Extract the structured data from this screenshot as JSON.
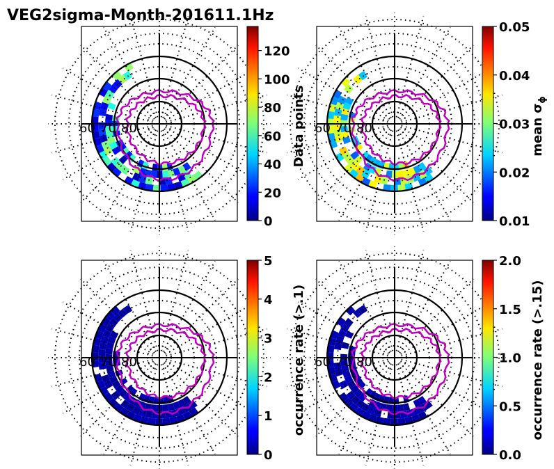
{
  "chart_data": {
    "type": "heatmap",
    "title": "VEG2sigma-Month-201611.1Hz",
    "projection": "polar",
    "lat_circle_labels": [
      "60",
      "70",
      "80"
    ],
    "panels": [
      {
        "id": "data-points",
        "colorbar": {
          "label": "Data points",
          "vmin": 0,
          "vmax": 137,
          "ticks": [
            0,
            20,
            40,
            60,
            80,
            100,
            120
          ],
          "tick_labels": [
            "0",
            "20",
            "40",
            "60",
            "80",
            "100",
            "120"
          ]
        }
      },
      {
        "id": "mean-sigma-phi",
        "colorbar": {
          "label": "mean σ",
          "label_sub": "ϕ",
          "vmin": 0.01,
          "vmax": 0.05,
          "ticks": [
            0.01,
            0.02,
            0.03,
            0.04,
            0.05
          ],
          "tick_labels": [
            "0.01",
            "0.02",
            "0.03",
            "0.04",
            "0.05"
          ]
        }
      },
      {
        "id": "occurrence-rate-01",
        "colorbar": {
          "label": "occurrence rate (>.1)",
          "vmin": 0,
          "vmax": 5,
          "ticks": [
            0,
            1,
            2,
            3,
            4,
            5
          ],
          "tick_labels": [
            "0",
            "1",
            "2",
            "3",
            "4",
            "5"
          ]
        }
      },
      {
        "id": "occurrence-rate-015",
        "colorbar": {
          "label": "occurrence rate (>.15)",
          "vmin": 0,
          "vmax": 2,
          "ticks": [
            0,
            0.5,
            1,
            1.5,
            2
          ],
          "tick_labels": [
            "0.0",
            "0.5",
            "1.0",
            "1.5",
            "2.0"
          ]
        }
      }
    ]
  }
}
